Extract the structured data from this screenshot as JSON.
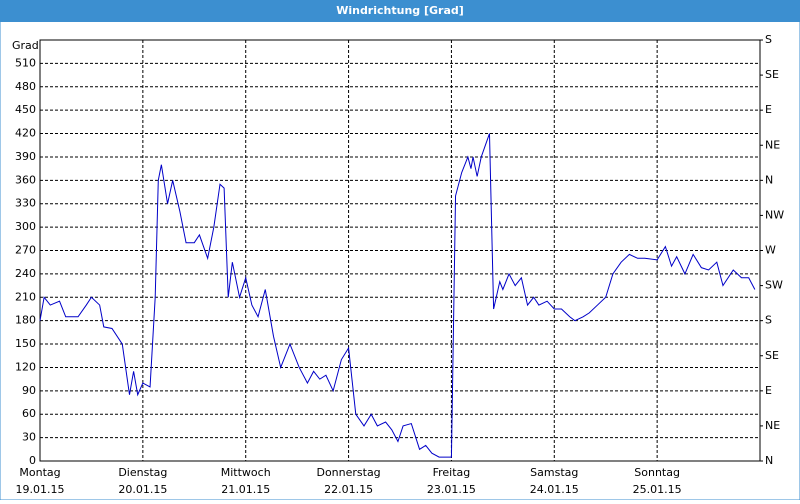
{
  "chart_data": {
    "type": "line",
    "title": "Windrichtung [Grad]",
    "y_label": "Grad",
    "color": "#0000c8",
    "grid": true,
    "xlim": [
      0,
      7
    ],
    "ylim": [
      0,
      540
    ],
    "y2lim": [
      0,
      540
    ],
    "xticks": [
      {
        "value": 0,
        "label": "Montag",
        "date": "19.01.15"
      },
      {
        "value": 1,
        "label": "Dienstag",
        "date": "20.01.15"
      },
      {
        "value": 2,
        "label": "Mittwoch",
        "date": "21.01.15"
      },
      {
        "value": 3,
        "label": "Donnerstag",
        "date": "22.01.15"
      },
      {
        "value": 4,
        "label": "Freitag",
        "date": "23.01.15"
      },
      {
        "value": 5,
        "label": "Samstag",
        "date": "24.01.15"
      },
      {
        "value": 6,
        "label": "Sonntag",
        "date": "25.01.15"
      }
    ],
    "yticks": [
      0,
      30,
      60,
      90,
      120,
      150,
      180,
      210,
      240,
      270,
      300,
      330,
      360,
      390,
      420,
      450,
      480,
      510
    ],
    "y2ticks": [
      {
        "value": 0,
        "label": "N"
      },
      {
        "value": 45,
        "label": "NE"
      },
      {
        "value": 90,
        "label": "E"
      },
      {
        "value": 135,
        "label": "SE"
      },
      {
        "value": 180,
        "label": "S"
      },
      {
        "value": 225,
        "label": "SW"
      },
      {
        "value": 270,
        "label": "W"
      },
      {
        "value": 315,
        "label": "NW"
      },
      {
        "value": 360,
        "label": "N"
      },
      {
        "value": 405,
        "label": "NE"
      },
      {
        "value": 450,
        "label": "E"
      },
      {
        "value": 495,
        "label": "SE"
      },
      {
        "value": 540,
        "label": "S"
      }
    ],
    "x": [
      0,
      0.04,
      0.1,
      0.19,
      0.25,
      0.37,
      0.45,
      0.5,
      0.58,
      0.62,
      0.7,
      0.8,
      0.87,
      0.91,
      0.95,
      1.0,
      1.07,
      1.12,
      1.15,
      1.18,
      1.24,
      1.29,
      1.36,
      1.42,
      1.5,
      1.55,
      1.63,
      1.69,
      1.75,
      1.79,
      1.83,
      1.87,
      1.94,
      2.0,
      2.06,
      2.12,
      2.19,
      2.27,
      2.34,
      2.43,
      2.52,
      2.6,
      2.66,
      2.72,
      2.78,
      2.85,
      2.93,
      3.0,
      3.07,
      3.15,
      3.22,
      3.28,
      3.36,
      3.42,
      3.48,
      3.53,
      3.61,
      3.69,
      3.75,
      3.81,
      3.88,
      3.94,
      4.0,
      4.04,
      4.1,
      4.16,
      4.19,
      4.21,
      4.25,
      4.29,
      4.37,
      4.41,
      4.47,
      4.5,
      4.56,
      4.62,
      4.68,
      4.74,
      4.8,
      4.85,
      4.93,
      5.0,
      5.07,
      5.15,
      5.2,
      5.28,
      5.34,
      5.42,
      5.5,
      5.57,
      5.65,
      5.73,
      5.81,
      5.88,
      6.0,
      6.08,
      6.14,
      6.19,
      6.27,
      6.35,
      6.43,
      6.5,
      6.58,
      6.64,
      6.74,
      6.82,
      6.89,
      6.95
    ],
    "values": [
      180,
      210,
      200,
      205,
      185,
      185,
      200,
      210,
      200,
      172,
      170,
      150,
      85,
      115,
      85,
      100,
      95,
      210,
      360,
      380,
      330,
      360,
      320,
      280,
      280,
      290,
      260,
      300,
      355,
      350,
      210,
      255,
      210,
      235,
      200,
      185,
      220,
      160,
      120,
      150,
      120,
      100,
      115,
      105,
      110,
      90,
      130,
      145,
      60,
      45,
      60,
      45,
      50,
      40,
      25,
      45,
      48,
      15,
      20,
      10,
      5,
      5,
      5,
      340,
      370,
      390,
      375,
      390,
      365,
      390,
      420,
      195,
      230,
      220,
      240,
      225,
      235,
      200,
      210,
      200,
      205,
      195,
      195,
      185,
      180,
      185,
      190,
      200,
      210,
      240,
      255,
      265,
      260,
      260,
      258,
      275,
      250,
      262,
      240,
      265,
      248,
      245,
      255,
      225,
      245,
      235,
      235,
      220
    ]
  }
}
